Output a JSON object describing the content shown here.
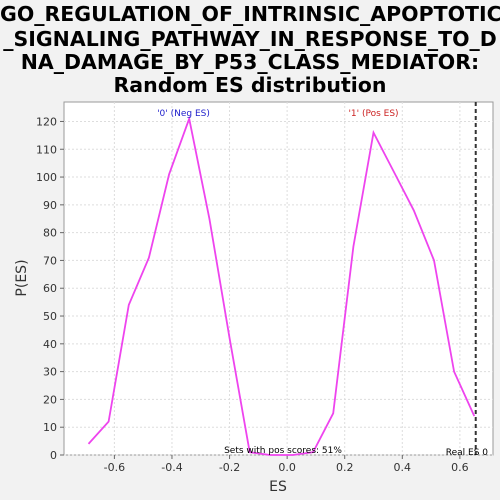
{
  "chart_data": {
    "type": "line",
    "title_lines": [
      "GO_REGULATION_OF_INTRINSIC_APOPTOTIC",
      "_SIGNALING_PATHWAY_IN_RESPONSE_TO_D",
      "NA_DAMAGE_BY_P53_CLASS_MEDIATOR:",
      "Random ES distribution"
    ],
    "xlabel": "ES",
    "ylabel": "P(ES)",
    "xlim": [
      -0.775,
      0.715
    ],
    "ylim": [
      0,
      127
    ],
    "x_ticks": [
      -0.6,
      -0.4,
      -0.2,
      0.0,
      0.2,
      0.4,
      0.6
    ],
    "x_tick_labels": [
      "-0.6",
      "-0.4",
      "-0.2",
      "0.0",
      "0.2",
      "0.4",
      "0.6"
    ],
    "y_ticks": [
      0,
      10,
      20,
      30,
      40,
      50,
      60,
      70,
      80,
      90,
      100,
      110,
      120
    ],
    "y_tick_labels": [
      "0",
      "10",
      "20",
      "30",
      "40",
      "50",
      "60",
      "70",
      "80",
      "90",
      "100",
      "110",
      "120"
    ],
    "grid": true,
    "series": [
      {
        "color": "#ee44ee",
        "x": [
          -0.69,
          -0.62,
          -0.55,
          -0.48,
          -0.41,
          -0.34,
          -0.27,
          -0.2,
          -0.13,
          -0.06,
          0.02,
          0.09,
          0.16,
          0.23,
          0.3,
          0.37,
          0.44,
          0.51,
          0.58,
          0.65
        ],
        "y": [
          4,
          12,
          54,
          71,
          101,
          121,
          85,
          42,
          1,
          0,
          0,
          1,
          15,
          75,
          116,
          102,
          88,
          70,
          30,
          14
        ]
      }
    ],
    "real_es": {
      "x": 0.655,
      "label": "Real ES 0"
    },
    "annotations": {
      "neg_label": "'0' (Neg ES)",
      "neg_x": -0.36,
      "neg_color": "#2222cc",
      "pos_label": "'1' (Pos ES)",
      "pos_x": 0.3,
      "pos_color": "#cc2222",
      "pos_scores_label": "Sets with pos scores: 51%"
    }
  }
}
